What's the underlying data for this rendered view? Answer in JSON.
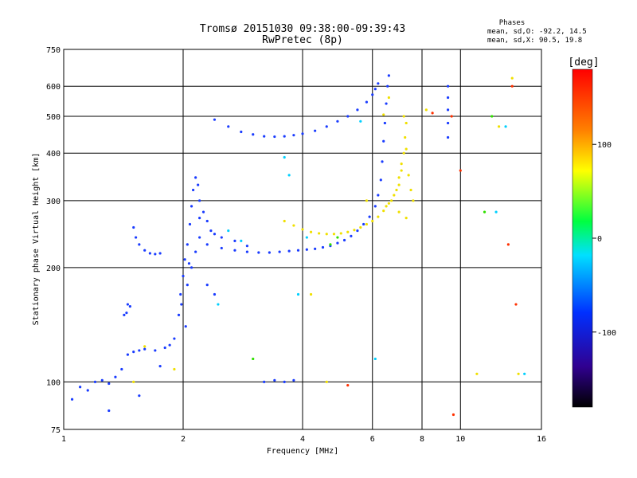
{
  "title_line1": "Tromsø 20151030 09:38:00-09:39:43",
  "title_line2": "RwPretec (8p)",
  "phases_box": {
    "heading": "Phases",
    "line_o": "mean, sd,O: -92.2, 14.5",
    "line_x": "mean, sd,X:  90.5, 19.8"
  },
  "colorbar": {
    "unit_label": "[deg]",
    "ticks": [
      {
        "value": 100,
        "label": "100"
      },
      {
        "value": 0,
        "label": "0"
      },
      {
        "value": -100,
        "label": "-100"
      }
    ],
    "range": [
      -180,
      180
    ]
  },
  "colors": {
    "o_mode": "#1a3cff",
    "x_mode": "#f0e000",
    "axis": "#000000"
  },
  "chart_data": {
    "type": "scatter",
    "xlabel": "Frequency [MHz]",
    "ylabel": "Stationary phase Virtual Height [km]",
    "x_scale": "log",
    "y_scale": "log",
    "xlim": [
      1,
      16
    ],
    "ylim": [
      75,
      750
    ],
    "grid": true,
    "x_ticks": [
      {
        "value": 1,
        "label": "1"
      },
      {
        "value": 2,
        "label": "2"
      },
      {
        "value": 4,
        "label": "4"
      },
      {
        "value": 6,
        "label": "6"
      },
      {
        "value": 8,
        "label": "8"
      },
      {
        "value": 10,
        "label": "10"
      },
      {
        "value": 16,
        "label": "16"
      }
    ],
    "y_ticks": [
      {
        "value": 75,
        "label": "75"
      },
      {
        "value": 100,
        "label": "100"
      },
      {
        "value": 200,
        "label": "200"
      },
      {
        "value": 300,
        "label": "300"
      },
      {
        "value": 400,
        "label": "400"
      },
      {
        "value": 500,
        "label": "500"
      },
      {
        "value": 600,
        "label": "600"
      },
      {
        "value": 750,
        "label": "750"
      }
    ],
    "series": [
      {
        "mode": "O",
        "color": "#1a3cff",
        "points": [
          [
            1.1,
            97
          ],
          [
            1.15,
            95
          ],
          [
            1.2,
            100
          ],
          [
            1.25,
            101
          ],
          [
            1.3,
            99
          ],
          [
            1.35,
            103
          ],
          [
            1.4,
            108
          ],
          [
            1.45,
            118
          ],
          [
            1.5,
            120
          ],
          [
            1.55,
            121
          ],
          [
            1.6,
            122
          ],
          [
            1.7,
            121
          ],
          [
            1.8,
            123
          ],
          [
            1.85,
            125
          ],
          [
            1.9,
            130
          ],
          [
            1.42,
            150
          ],
          [
            1.45,
            160
          ],
          [
            1.47,
            158
          ],
          [
            1.44,
            152
          ],
          [
            1.95,
            150
          ],
          [
            1.97,
            170
          ],
          [
            2.0,
            190
          ],
          [
            2.02,
            210
          ],
          [
            2.05,
            230
          ],
          [
            2.08,
            260
          ],
          [
            2.1,
            290
          ],
          [
            2.12,
            320
          ],
          [
            2.15,
            345
          ],
          [
            2.18,
            330
          ],
          [
            2.2,
            300
          ],
          [
            2.25,
            280
          ],
          [
            2.3,
            265
          ],
          [
            2.35,
            250
          ],
          [
            2.4,
            245
          ],
          [
            2.05,
            180
          ],
          [
            2.1,
            200
          ],
          [
            2.15,
            220
          ],
          [
            2.2,
            240
          ],
          [
            1.98,
            160
          ],
          [
            2.03,
            140
          ],
          [
            2.07,
            205
          ],
          [
            1.5,
            255
          ],
          [
            1.52,
            240
          ],
          [
            1.55,
            230
          ],
          [
            1.6,
            222
          ],
          [
            1.65,
            218
          ],
          [
            1.7,
            217
          ],
          [
            1.75,
            218
          ],
          [
            2.3,
            230
          ],
          [
            2.5,
            225
          ],
          [
            2.7,
            222
          ],
          [
            2.9,
            220
          ],
          [
            3.1,
            219
          ],
          [
            3.3,
            219
          ],
          [
            3.5,
            220
          ],
          [
            3.7,
            221
          ],
          [
            3.9,
            222
          ],
          [
            4.1,
            223
          ],
          [
            4.3,
            224
          ],
          [
            4.5,
            226
          ],
          [
            4.7,
            228
          ],
          [
            4.9,
            232
          ],
          [
            5.1,
            236
          ],
          [
            5.3,
            242
          ],
          [
            5.5,
            250
          ],
          [
            5.7,
            260
          ],
          [
            5.9,
            272
          ],
          [
            6.1,
            290
          ],
          [
            6.2,
            310
          ],
          [
            6.3,
            340
          ],
          [
            6.35,
            380
          ],
          [
            6.4,
            430
          ],
          [
            6.45,
            480
          ],
          [
            6.5,
            540
          ],
          [
            6.55,
            600
          ],
          [
            6.6,
            640
          ],
          [
            2.5,
            240
          ],
          [
            2.7,
            235
          ],
          [
            2.9,
            228
          ],
          [
            2.4,
            490
          ],
          [
            2.6,
            470
          ],
          [
            2.8,
            455
          ],
          [
            3.0,
            448
          ],
          [
            3.2,
            443
          ],
          [
            3.4,
            442
          ],
          [
            3.6,
            443
          ],
          [
            3.8,
            446
          ],
          [
            4.0,
            450
          ],
          [
            4.3,
            458
          ],
          [
            4.6,
            470
          ],
          [
            4.9,
            485
          ],
          [
            5.2,
            500
          ],
          [
            5.5,
            520
          ],
          [
            5.8,
            545
          ],
          [
            6.0,
            570
          ],
          [
            6.1,
            590
          ],
          [
            6.2,
            610
          ],
          [
            3.2,
            100
          ],
          [
            3.4,
            101
          ],
          [
            3.6,
            100
          ],
          [
            3.8,
            101
          ],
          [
            9.3,
            440
          ],
          [
            9.3,
            480
          ],
          [
            9.3,
            520
          ],
          [
            9.3,
            560
          ],
          [
            9.3,
            600
          ],
          [
            1.05,
            90
          ],
          [
            1.3,
            84
          ],
          [
            1.55,
            92
          ],
          [
            2.2,
            270
          ],
          [
            2.3,
            180
          ],
          [
            2.4,
            170
          ],
          [
            1.75,
            110
          ]
        ]
      },
      {
        "mode": "X",
        "color": "#f0e000",
        "points": [
          [
            3.6,
            265
          ],
          [
            3.8,
            258
          ],
          [
            4.0,
            252
          ],
          [
            4.2,
            248
          ],
          [
            4.4,
            246
          ],
          [
            4.6,
            245
          ],
          [
            4.8,
            245
          ],
          [
            5.0,
            246
          ],
          [
            5.2,
            248
          ],
          [
            5.4,
            251
          ],
          [
            5.6,
            255
          ],
          [
            5.8,
            260
          ],
          [
            6.0,
            265
          ],
          [
            6.2,
            272
          ],
          [
            6.4,
            282
          ],
          [
            6.6,
            295
          ],
          [
            6.8,
            310
          ],
          [
            7.0,
            330
          ],
          [
            7.1,
            360
          ],
          [
            7.2,
            400
          ],
          [
            7.25,
            440
          ],
          [
            7.3,
            480
          ],
          [
            6.5,
            290
          ],
          [
            6.7,
            300
          ],
          [
            6.9,
            320
          ],
          [
            7.0,
            345
          ],
          [
            7.1,
            375
          ],
          [
            7.3,
            410
          ],
          [
            7.4,
            350
          ],
          [
            7.5,
            320
          ],
          [
            7.6,
            300
          ],
          [
            6.4,
            505
          ],
          [
            6.6,
            560
          ],
          [
            7.2,
            500
          ],
          [
            5.8,
            300
          ],
          [
            7.0,
            280
          ],
          [
            7.3,
            270
          ],
          [
            4.2,
            170
          ],
          [
            1.5,
            100
          ],
          [
            1.6,
            124
          ],
          [
            1.9,
            108
          ],
          [
            4.6,
            100
          ],
          [
            13.5,
            630
          ],
          [
            12.5,
            470
          ],
          [
            8.2,
            520
          ],
          [
            11.0,
            105
          ],
          [
            14.0,
            105
          ]
        ]
      },
      {
        "mode": "misc",
        "color": "#ff3000",
        "points": [
          [
            9.6,
            82
          ],
          [
            9.5,
            500
          ],
          [
            10.0,
            360
          ],
          [
            13.8,
            160
          ],
          [
            13.5,
            600
          ],
          [
            13.2,
            230
          ],
          [
            5.2,
            98
          ],
          [
            8.5,
            510
          ]
        ]
      },
      {
        "mode": "misc",
        "color": "#00d0ff",
        "points": [
          [
            2.6,
            250
          ],
          [
            2.8,
            235
          ],
          [
            3.6,
            390
          ],
          [
            3.7,
            350
          ],
          [
            4.1,
            240
          ],
          [
            5.6,
            485
          ],
          [
            6.1,
            115
          ],
          [
            13.0,
            470
          ],
          [
            12.3,
            280
          ],
          [
            14.5,
            105
          ],
          [
            3.9,
            170
          ],
          [
            2.45,
            160
          ]
        ]
      },
      {
        "mode": "misc",
        "color": "#30e000",
        "points": [
          [
            3.0,
            115
          ],
          [
            4.7,
            230
          ],
          [
            11.5,
            280
          ],
          [
            4.9,
            240
          ],
          [
            12.0,
            500
          ]
        ]
      }
    ]
  }
}
